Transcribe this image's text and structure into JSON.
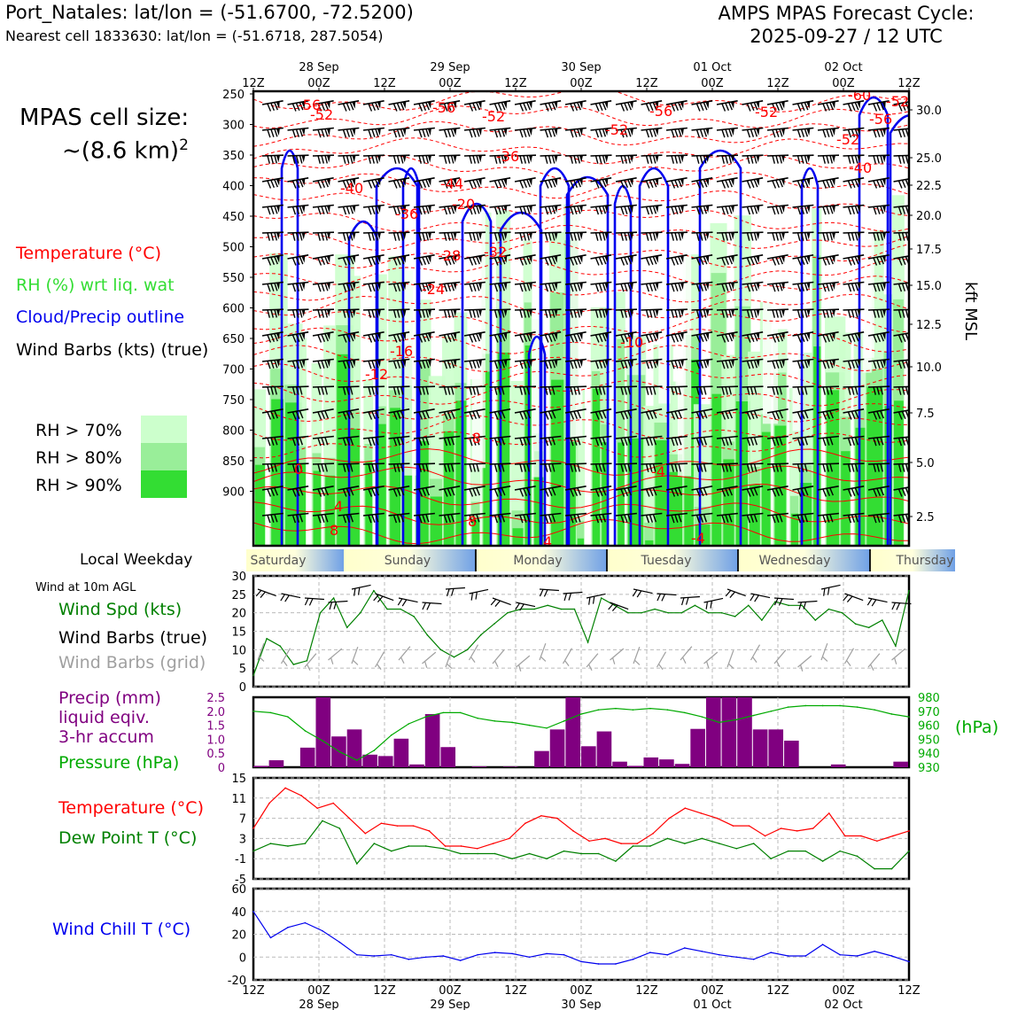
{
  "header": {
    "station_line": "Port_Natales: lat/lon = (-51.6700, -72.5200)",
    "cell_line": "Nearest cell 1833630: lat/lon = (-51.6718, 287.5054)",
    "cycle_line1": "AMPS MPAS Forecast Cycle:",
    "cycle_line2": "2025-09-27 / 12 UTC"
  },
  "cell_size": {
    "line1": "MPAS cell size:",
    "line2_prefix": "~(8.6 km)",
    "line2_sup": "2"
  },
  "upper_legend": {
    "temperature": "Temperature (°C)",
    "rh": "RH (%) wrt liq. wat",
    "cloud": "Cloud/Precip outline",
    "barbs": "Wind Barbs (kts) (true)",
    "rh70": "RH > 70%",
    "rh80": "RH > 80%",
    "rh90": "RH > 90%"
  },
  "colors": {
    "temp": "#ff0000",
    "rh_label": "#33dd33",
    "cloud": "#0000ee",
    "rh70": "#ccffcc",
    "rh80": "#99ee99",
    "rh90": "#33dd33",
    "precip": "#800080",
    "pressure": "#00aa00",
    "wind_speed": "#008000",
    "grid_barbs": "#a0a0a0",
    "dewpoint": "#008000",
    "windchill": "#0000ee"
  },
  "time_axis": {
    "ticks": [
      "12Z",
      "00Z",
      "12Z",
      "00Z",
      "12Z",
      "00Z",
      "12Z",
      "00Z",
      "12Z",
      "00Z",
      "12Z"
    ],
    "dates": [
      "28 Sep",
      "29 Sep",
      "30 Sep",
      "01 Oct",
      "02 Oct"
    ]
  },
  "weekday": {
    "label": "Local Weekday",
    "days": [
      "Saturday",
      "Sunday",
      "Monday",
      "Tuesday",
      "Wednesday",
      "Thursday"
    ]
  },
  "wind_panel": {
    "title": "Wind at 10m AGL",
    "spd_label": "Wind Spd (kts)",
    "barbs_true": "Wind Barbs (true)",
    "barbs_grid": "Wind Barbs (grid)"
  },
  "precip_panel": {
    "label1": "Precip (mm)",
    "label2": "liquid eqiv.",
    "label3": "3-hr accum",
    "pressure_label": "Pressure (hPa)",
    "hpa_unit": "(hPa)"
  },
  "temp_panel": {
    "temp_label": "Temperature (°C)",
    "dew_label": "Dew Point T (°C)"
  },
  "chill_panel": {
    "label": "Wind Chill T (°C)"
  },
  "chart_data": [
    {
      "type": "heatmap",
      "panel": "cross-section",
      "y_left_label": "",
      "y_left_ticks": [
        "250",
        "300",
        "350",
        "400",
        "450",
        "500",
        "550",
        "600",
        "650",
        "700",
        "750",
        "800",
        "850",
        "900"
      ],
      "y_right_label": "kft MSL",
      "y_right_ticks": [
        "30.0",
        "25.0",
        "22.5",
        "20.0",
        "17.5",
        "15.0",
        "12.5",
        "10.0",
        "7.5",
        "5.0",
        "2.5"
      ],
      "temp_contour_labels": [
        "-56",
        "-52",
        "-52",
        "-52",
        "-56",
        "-52",
        "-56",
        "-52",
        "-52",
        "-56",
        "-60",
        "-40",
        "-36",
        "-40",
        "-44",
        "-28",
        "-32",
        "-24",
        "-16",
        "-12",
        "-10",
        "-8",
        "0",
        "-4",
        "-4",
        "4",
        "8",
        "8",
        "4",
        "-36",
        "-20"
      ]
    },
    {
      "type": "line",
      "panel": "wind",
      "ylim": [
        0,
        30
      ],
      "y_ticks": [
        "30",
        "25",
        "20",
        "15",
        "10",
        "5",
        "0"
      ],
      "series": [
        {
          "name": "Wind Spd (kts)",
          "values": [
            3,
            13,
            11,
            6,
            7,
            20,
            24,
            16,
            20,
            26,
            21,
            21,
            19,
            14,
            10,
            8,
            10,
            14,
            17,
            20,
            21,
            21,
            22,
            21,
            21,
            12,
            24,
            22,
            20,
            20,
            21,
            20,
            20,
            22,
            20,
            20,
            19,
            22,
            18,
            23,
            22,
            22,
            18,
            21,
            20,
            17,
            16,
            18,
            11,
            26
          ]
        }
      ]
    },
    {
      "type": "bar",
      "panel": "precip",
      "ylim": [
        0,
        2.5
      ],
      "y_ticks": [
        "2.5",
        "2.0",
        "1.5",
        "1.0",
        "0.5",
        "0"
      ],
      "values": [
        0.05,
        0.25,
        0.0,
        0.7,
        2.5,
        1.1,
        1.35,
        0.45,
        0.4,
        1.02,
        0.1,
        1.9,
        0.72,
        0.0,
        0.03,
        0.0,
        0.02,
        0.0,
        0.58,
        1.35,
        2.5,
        0.75,
        1.28,
        0.2,
        0.05,
        0.35,
        0.28,
        0.12,
        1.37,
        2.5,
        2.5,
        2.5,
        1.35,
        1.35,
        0.95,
        0.0,
        0.0,
        0.1,
        0.0,
        0.0,
        0.0,
        0.2
      ],
      "series": [
        {
          "name": "Pressure (hPa)",
          "values": [
            970,
            969,
            966,
            956,
            949,
            941,
            935,
            942,
            953,
            961,
            966,
            969,
            969,
            965,
            963,
            962,
            960,
            958,
            963,
            968,
            971,
            972,
            971,
            972,
            971,
            969,
            966,
            962,
            964,
            967,
            970,
            973,
            974,
            974,
            974,
            973,
            971,
            968,
            966
          ]
        }
      ],
      "y2lim": [
        930,
        980
      ],
      "y2_ticks": [
        "980",
        "970",
        "960",
        "950",
        "940",
        "930"
      ]
    },
    {
      "type": "line",
      "panel": "temperature",
      "ylim": [
        -5,
        15
      ],
      "y_ticks": [
        "15",
        "11",
        "7",
        "3",
        "-1",
        "-5"
      ],
      "series": [
        {
          "name": "Temperature (°C)",
          "values": [
            5,
            10,
            13,
            11.5,
            9,
            10,
            7,
            4,
            6,
            5.5,
            5.5,
            4.5,
            1.5,
            1.5,
            1,
            2,
            3,
            6,
            7.5,
            7,
            4.5,
            2.5,
            3,
            2,
            2,
            4,
            7,
            9,
            8,
            7,
            5.5,
            5.5,
            3.5,
            5,
            4.5,
            5,
            8,
            3.5,
            3.5,
            2.5,
            3.5,
            4.5
          ]
        },
        {
          "name": "Dew Point T (°C)",
          "values": [
            0.5,
            2,
            1.5,
            2,
            6.5,
            5,
            -2,
            2,
            0.5,
            1.5,
            1.5,
            1,
            0,
            0,
            0,
            -1,
            0,
            -1,
            0.5,
            0,
            0,
            -1.5,
            1.5,
            1.5,
            3,
            2,
            3,
            2,
            1,
            2,
            -1,
            0.5,
            0.5,
            -1.5,
            0.5,
            -0.5,
            -3,
            -3,
            0.5
          ]
        }
      ]
    },
    {
      "type": "line",
      "panel": "windchill",
      "ylim": [
        -20,
        60
      ],
      "y_ticks": [
        "60",
        "40",
        "20",
        "0",
        "-20"
      ],
      "series": [
        {
          "name": "Wind Chill T (°C)",
          "values": [
            40,
            17,
            26,
            30,
            23,
            13,
            2,
            1,
            2,
            -2,
            0,
            1,
            -3,
            2,
            4,
            3,
            0,
            3,
            2,
            -4,
            -6,
            -6,
            -2,
            4,
            2,
            8,
            5,
            2,
            0,
            -2,
            4,
            1,
            1,
            11,
            2,
            1,
            5,
            1,
            -4
          ]
        }
      ]
    }
  ]
}
